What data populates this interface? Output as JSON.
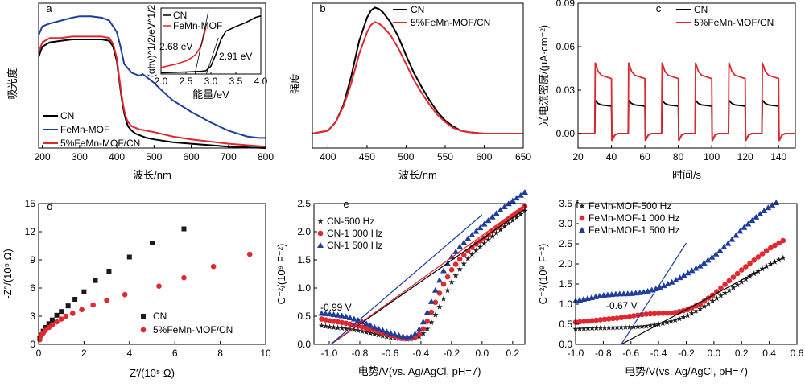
{
  "chart_data": [
    {
      "id": "a",
      "panel_label": "a",
      "type": "line",
      "xlabel": "波长/nm",
      "ylabel": "吸光度",
      "xlim": [
        190,
        800
      ],
      "ylim": [
        0,
        1
      ],
      "xticks": [
        "200",
        "300",
        "400",
        "500",
        "600",
        "700",
        "800"
      ],
      "series": [
        {
          "name": "CN",
          "color": "#000000",
          "x": [
            190,
            200,
            220,
            250,
            280,
            300,
            330,
            360,
            380,
            390,
            400,
            405,
            410,
            415,
            420,
            425,
            430,
            440,
            450,
            460,
            480,
            500,
            550,
            600,
            700,
            800
          ],
          "y": [
            0.63,
            0.7,
            0.73,
            0.74,
            0.75,
            0.75,
            0.75,
            0.75,
            0.74,
            0.7,
            0.6,
            0.5,
            0.4,
            0.31,
            0.24,
            0.19,
            0.15,
            0.12,
            0.1,
            0.09,
            0.07,
            0.06,
            0.04,
            0.03,
            0.01,
            0.0
          ]
        },
        {
          "name": "FeMn-MOF",
          "color": "#1f3e9c",
          "x": [
            190,
            200,
            220,
            250,
            280,
            300,
            330,
            360,
            380,
            400,
            410,
            420,
            440,
            460,
            470,
            480,
            500,
            520,
            550,
            600,
            650,
            700,
            750,
            780,
            800
          ],
          "y": [
            0.78,
            0.84,
            0.86,
            0.88,
            0.9,
            0.91,
            0.91,
            0.9,
            0.88,
            0.8,
            0.7,
            0.58,
            0.52,
            0.5,
            0.51,
            0.49,
            0.45,
            0.4,
            0.33,
            0.25,
            0.18,
            0.12,
            0.08,
            0.07,
            0.07
          ]
        },
        {
          "name": "5%FeMn-MOF/CN",
          "color": "#e0282e",
          "x": [
            190,
            200,
            220,
            250,
            280,
            300,
            330,
            360,
            380,
            390,
            400,
            405,
            410,
            415,
            420,
            425,
            430,
            440,
            450,
            460,
            480,
            500,
            550,
            600,
            700,
            800
          ],
          "y": [
            0.66,
            0.73,
            0.76,
            0.76,
            0.77,
            0.77,
            0.77,
            0.77,
            0.76,
            0.72,
            0.62,
            0.52,
            0.42,
            0.33,
            0.26,
            0.21,
            0.18,
            0.15,
            0.14,
            0.13,
            0.12,
            0.11,
            0.08,
            0.06,
            0.03,
            0.01
          ]
        }
      ],
      "legend": [
        "CN",
        "FeMn-MOF",
        "5%FeMn-MOF/CN"
      ],
      "inset": {
        "xlabel": "能量/eV",
        "ylabel": "(αhν)^1/2/eV^1/2",
        "xlim": [
          2.0,
          4.0
        ],
        "ylim": [
          0,
          1
        ],
        "xticks": [
          "2.0",
          "2.5",
          "3.0",
          "3.5",
          "4.0"
        ],
        "legend": [
          "CN",
          "FeMn-MOF"
        ],
        "annotations": [
          "2.68 eV",
          "2.91 eV"
        ],
        "series": [
          {
            "name": "CN",
            "color": "#000000",
            "x": [
              2.0,
              2.5,
              2.8,
              2.9,
              3.0,
              3.1,
              3.2,
              3.3,
              3.5,
              3.7,
              3.9,
              4.0
            ],
            "y": [
              0.02,
              0.03,
              0.04,
              0.05,
              0.12,
              0.3,
              0.52,
              0.65,
              0.72,
              0.78,
              0.86,
              0.88
            ]
          },
          {
            "name": "FeMn-MOF",
            "color": "#e0282e",
            "x": [
              2.0,
              2.3,
              2.5,
              2.6,
              2.7,
              2.8,
              2.85,
              2.9
            ],
            "y": [
              0.1,
              0.15,
              0.2,
              0.24,
              0.3,
              0.42,
              0.55,
              0.7
            ]
          }
        ]
      }
    },
    {
      "id": "b",
      "panel_label": "b",
      "type": "line",
      "xlabel": "波长/nm",
      "ylabel": "强度",
      "xlim": [
        380,
        650
      ],
      "ylim": [
        0,
        1
      ],
      "xticks": [
        "400",
        "450",
        "500",
        "550",
        "600",
        "650"
      ],
      "legend": [
        "CN",
        "5%FeMn-MOF/CN"
      ],
      "series": [
        {
          "name": "CN",
          "color": "#000000",
          "x": [
            380,
            400,
            410,
            420,
            430,
            440,
            450,
            455,
            460,
            465,
            470,
            480,
            490,
            500,
            510,
            520,
            530,
            540,
            550,
            560,
            570,
            580,
            600,
            620,
            650
          ],
          "y": [
            0.1,
            0.12,
            0.18,
            0.3,
            0.5,
            0.74,
            0.9,
            0.95,
            0.97,
            0.96,
            0.94,
            0.87,
            0.77,
            0.64,
            0.52,
            0.42,
            0.33,
            0.25,
            0.19,
            0.15,
            0.12,
            0.11,
            0.1,
            0.1,
            0.1
          ]
        },
        {
          "name": "5%FeMn-MOF/CN",
          "color": "#e0282e",
          "x": [
            380,
            400,
            410,
            420,
            430,
            440,
            450,
            455,
            460,
            465,
            470,
            480,
            490,
            500,
            510,
            520,
            530,
            540,
            550,
            560,
            570,
            580,
            600,
            620,
            650
          ],
          "y": [
            0.1,
            0.12,
            0.18,
            0.29,
            0.45,
            0.65,
            0.8,
            0.85,
            0.87,
            0.86,
            0.84,
            0.78,
            0.69,
            0.58,
            0.47,
            0.38,
            0.3,
            0.23,
            0.18,
            0.14,
            0.12,
            0.11,
            0.1,
            0.1,
            0.1
          ]
        }
      ]
    },
    {
      "id": "c",
      "panel_label": "c",
      "type": "line",
      "xlabel": "时间/s",
      "ylabel": "光电流密度/(μA·cm⁻²)",
      "xlim": [
        20,
        150
      ],
      "ylim": [
        -0.01,
        0.09
      ],
      "xticks": [
        "20",
        "40",
        "60",
        "80",
        "100",
        "120",
        "140"
      ],
      "yticks": [
        "0.00",
        "0.03",
        "0.06",
        "0.09"
      ],
      "legend": [
        "CN",
        "5%FeMn-MOF/CN"
      ],
      "pulses": [
        [
          30,
          40
        ],
        [
          50,
          60
        ],
        [
          70,
          80
        ],
        [
          90,
          100
        ],
        [
          110,
          120
        ],
        [
          130,
          140
        ]
      ],
      "series": [
        {
          "name": "CN",
          "color": "#000000",
          "on_peak": 0.023,
          "on_steady": 0.019,
          "off_level": 0.0
        },
        {
          "name": "5%FeMn-MOF/CN",
          "color": "#e0282e",
          "on_peak": 0.049,
          "on_steady": 0.038,
          "off_level": 0.0
        }
      ]
    },
    {
      "id": "d",
      "panel_label": "d",
      "type": "scatter",
      "xlabel": "Z′/(10⁵ Ω)",
      "ylabel": "-Z″/(10⁵ Ω)",
      "xlim": [
        0,
        10
      ],
      "ylim": [
        0,
        15
      ],
      "xticks": [
        "0",
        "2",
        "4",
        "6",
        "8",
        "10"
      ],
      "yticks": [
        "0",
        "3",
        "6",
        "9",
        "12",
        "15"
      ],
      "legend": [
        "CN",
        "5%FeMn-MOF/CN"
      ],
      "series": [
        {
          "name": "CN",
          "color": "#1a1a1a",
          "marker": "square",
          "x": [
            0.05,
            0.1,
            0.2,
            0.3,
            0.45,
            0.6,
            0.8,
            1.0,
            1.3,
            1.6,
            2.0,
            2.5,
            3.1,
            4.0,
            5.0,
            6.4
          ],
          "y": [
            0.6,
            1.0,
            1.4,
            1.8,
            2.2,
            2.6,
            3.1,
            3.5,
            4.1,
            4.8,
            5.6,
            6.8,
            7.8,
            9.3,
            10.8,
            12.3
          ]
        },
        {
          "name": "5%FeMn-MOF/CN",
          "color": "#e0282e",
          "marker": "circle",
          "x": [
            0.05,
            0.1,
            0.2,
            0.3,
            0.45,
            0.6,
            0.8,
            1.0,
            1.2,
            1.5,
            1.9,
            2.4,
            3.0,
            3.8,
            5.3,
            6.4,
            7.7,
            9.3
          ],
          "y": [
            0.5,
            0.9,
            1.2,
            1.5,
            1.8,
            2.1,
            2.4,
            2.7,
            3.0,
            3.3,
            3.7,
            4.2,
            4.7,
            5.3,
            6.2,
            7.1,
            8.3,
            9.6
          ]
        }
      ]
    },
    {
      "id": "e",
      "panel_label": "e",
      "type": "scatter",
      "xlabel": "电势/V(vs. Ag/AgCl, pH=7)",
      "ylabel": "C⁻²/(10⁹ F⁻²)",
      "xlim": [
        -1.1,
        0.28
      ],
      "ylim": [
        0,
        2.5
      ],
      "xticks": [
        "-1.0",
        "-0.8",
        "-0.6",
        "-0.4",
        "-0.2",
        "0.0",
        "0.2"
      ],
      "yticks": [
        "0.0",
        "0.5",
        "1.0",
        "1.5",
        "2.0",
        "2.5"
      ],
      "legend": [
        "CN-500 Hz",
        "CN-1 000 Hz",
        "CN-1 500 Hz"
      ],
      "annotation": "-0.99 V",
      "series": [
        {
          "name": "CN-500 Hz",
          "color": "#222222",
          "marker": "star",
          "x": [
            -1.05,
            -1.0,
            -0.9,
            -0.8,
            -0.7,
            -0.6,
            -0.5,
            -0.45,
            -0.4,
            -0.35,
            -0.3,
            -0.25,
            -0.2,
            -0.15,
            -0.1,
            -0.05,
            0.0,
            0.05,
            0.1,
            0.15,
            0.2,
            0.25,
            0.28
          ],
          "y": [
            0.33,
            0.31,
            0.28,
            0.24,
            0.18,
            0.12,
            0.09,
            0.1,
            0.15,
            0.3,
            0.55,
            0.82,
            1.1,
            1.32,
            1.5,
            1.64,
            1.76,
            1.88,
            1.99,
            2.1,
            2.2,
            2.3,
            2.37
          ]
        },
        {
          "name": "CN-1 000 Hz",
          "color": "#e0282e",
          "marker": "circle",
          "x": [
            -1.05,
            -1.0,
            -0.9,
            -0.8,
            -0.7,
            -0.6,
            -0.5,
            -0.45,
            -0.4,
            -0.35,
            -0.3,
            -0.25,
            -0.2,
            -0.15,
            -0.1,
            -0.05,
            0.0,
            0.05,
            0.1,
            0.15,
            0.2,
            0.25,
            0.28
          ],
          "y": [
            0.45,
            0.42,
            0.38,
            0.32,
            0.24,
            0.16,
            0.1,
            0.11,
            0.2,
            0.45,
            0.78,
            1.08,
            1.32,
            1.5,
            1.64,
            1.76,
            1.86,
            1.97,
            2.08,
            2.18,
            2.28,
            2.38,
            2.45
          ]
        },
        {
          "name": "CN-1 500 Hz",
          "color": "#1f3e9c",
          "marker": "triangle",
          "x": [
            -1.05,
            -1.0,
            -0.9,
            -0.8,
            -0.7,
            -0.6,
            -0.5,
            -0.45,
            -0.4,
            -0.35,
            -0.3,
            -0.25,
            -0.2,
            -0.15,
            -0.1,
            -0.05,
            0.0,
            0.05,
            0.1,
            0.15,
            0.2,
            0.25,
            0.28
          ],
          "y": [
            0.55,
            0.54,
            0.5,
            0.42,
            0.3,
            0.2,
            0.13,
            0.15,
            0.3,
            0.62,
            1.0,
            1.32,
            1.55,
            1.72,
            1.86,
            1.98,
            2.1,
            2.22,
            2.34,
            2.45,
            2.55,
            2.64,
            2.7
          ]
        }
      ],
      "fit_lines": [
        {
          "color": "#000000",
          "x": [
            -0.99,
            0.28
          ],
          "y": [
            0.0,
            2.4
          ]
        },
        {
          "color": "#e0282e",
          "x": [
            -0.99,
            0.28
          ],
          "y": [
            0.0,
            2.48
          ]
        },
        {
          "color": "#1f3e9c",
          "x": [
            -0.99,
            0.0
          ],
          "y": [
            0.0,
            2.3
          ]
        }
      ]
    },
    {
      "id": "f",
      "panel_label": "f",
      "type": "scatter",
      "xlabel": "电势/V(vs. Ag/AgCl, pH=7)",
      "ylabel": "C⁻²/(10⁹ F⁻²)",
      "xlim": [
        -1.0,
        0.6
      ],
      "ylim": [
        0,
        3.5
      ],
      "xticks": [
        "-1.0",
        "-0.8",
        "-0.6",
        "-0.4",
        "-0.2",
        "0.0",
        "0.2",
        "0.4",
        "0.6"
      ],
      "yticks": [
        "0.0",
        "0.5",
        "1.0",
        "1.5",
        "2.0",
        "2.5",
        "3.0",
        "3.5"
      ],
      "legend": [
        "FeMn-MOF-500 Hz",
        "FeMn-MOF-1 000 Hz",
        "FeMn-MOF-1 500 Hz"
      ],
      "annotation": "-0.67 V",
      "series": [
        {
          "name": "FeMn-MOF-500 Hz",
          "color": "#222222",
          "marker": "star",
          "x": [
            -1.0,
            -0.9,
            -0.8,
            -0.7,
            -0.6,
            -0.5,
            -0.4,
            -0.3,
            -0.2,
            -0.1,
            0.0,
            0.1,
            0.2,
            0.3,
            0.4,
            0.5
          ],
          "y": [
            0.38,
            0.4,
            0.41,
            0.42,
            0.43,
            0.45,
            0.5,
            0.58,
            0.7,
            0.88,
            1.1,
            1.32,
            1.55,
            1.78,
            1.98,
            2.15
          ]
        },
        {
          "name": "FeMn-MOF-1 000 Hz",
          "color": "#e0282e",
          "marker": "circle",
          "x": [
            -1.0,
            -0.9,
            -0.8,
            -0.7,
            -0.6,
            -0.5,
            -0.4,
            -0.3,
            -0.2,
            -0.1,
            0.0,
            0.1,
            0.2,
            0.3,
            0.4,
            0.5
          ],
          "y": [
            0.55,
            0.58,
            0.62,
            0.65,
            0.7,
            0.75,
            0.77,
            0.78,
            0.85,
            1.0,
            1.25,
            1.55,
            1.85,
            2.12,
            2.38,
            2.58
          ]
        },
        {
          "name": "FeMn-MOF-1 500 Hz",
          "color": "#1f3e9c",
          "marker": "triangle",
          "x": [
            -1.0,
            -0.9,
            -0.8,
            -0.7,
            -0.6,
            -0.5,
            -0.4,
            -0.3,
            -0.2,
            -0.1,
            0.0,
            0.1,
            0.2,
            0.3,
            0.4,
            0.45
          ],
          "y": [
            1.08,
            1.15,
            1.22,
            1.25,
            1.26,
            1.3,
            1.4,
            1.55,
            1.75,
            1.95,
            2.2,
            2.5,
            2.85,
            3.15,
            3.42,
            3.52
          ]
        }
      ],
      "fit_lines": [
        {
          "color": "#000000",
          "x": [
            -0.67,
            0.5
          ],
          "y": [
            0.0,
            2.15
          ]
        },
        {
          "color": "#1f3e9c",
          "x": [
            -0.67,
            -0.2
          ],
          "y": [
            0.0,
            2.52
          ]
        }
      ]
    }
  ]
}
